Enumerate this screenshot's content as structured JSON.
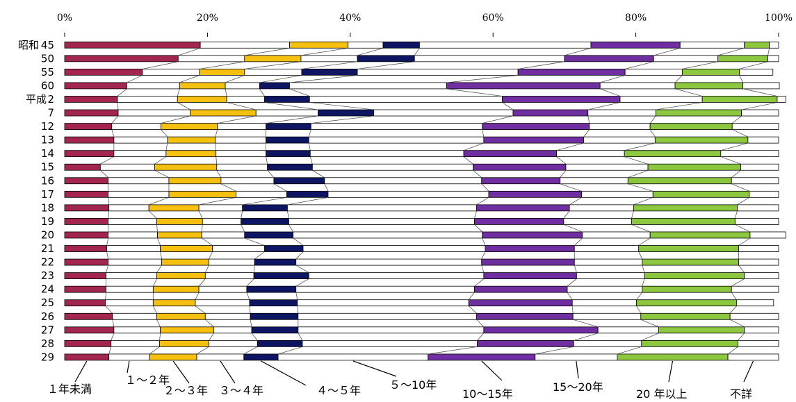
{
  "chart_data": {
    "type": "bar",
    "orientation": "horizontal",
    "stacked": "100%",
    "title": "",
    "xlabel": "",
    "ylabel": "",
    "xlim": [
      0,
      100
    ],
    "x_ticks": [
      "0%",
      "20%",
      "40%",
      "60%",
      "80%",
      "100%"
    ],
    "categories": [
      {
        "era": "昭和",
        "year": "45"
      },
      {
        "era": "",
        "year": "50"
      },
      {
        "era": "",
        "year": "55"
      },
      {
        "era": "",
        "year": "60"
      },
      {
        "era": "平成",
        "year": "2"
      },
      {
        "era": "",
        "year": "7"
      },
      {
        "era": "",
        "year": "12"
      },
      {
        "era": "",
        "year": "13"
      },
      {
        "era": "",
        "year": "14"
      },
      {
        "era": "",
        "year": "15"
      },
      {
        "era": "",
        "year": "16"
      },
      {
        "era": "",
        "year": "17"
      },
      {
        "era": "",
        "year": "18"
      },
      {
        "era": "",
        "year": "19"
      },
      {
        "era": "",
        "year": "20"
      },
      {
        "era": "",
        "year": "21"
      },
      {
        "era": "",
        "year": "22"
      },
      {
        "era": "",
        "year": "23"
      },
      {
        "era": "",
        "year": "24"
      },
      {
        "era": "",
        "year": "25"
      },
      {
        "era": "",
        "year": "26"
      },
      {
        "era": "",
        "year": "27"
      },
      {
        "era": "",
        "year": "28"
      },
      {
        "era": "",
        "year": "29"
      }
    ],
    "series": [
      {
        "name": "１年未満",
        "color": "#a3264e",
        "values": [
          19.0,
          15.9,
          10.9,
          8.7,
          7.4,
          7.5,
          6.6,
          6.9,
          6.9,
          5.0,
          6.1,
          6.1,
          6.2,
          6.1,
          6.1,
          5.9,
          6.1,
          5.8,
          5.8,
          5.7,
          6.7,
          6.9,
          6.5,
          6.2
        ]
      },
      {
        "name": "１～２年",
        "color": "#ffffff",
        "values": [
          12.5,
          9.3,
          8.0,
          7.4,
          8.4,
          10.1,
          6.9,
          7.5,
          7.3,
          7.6,
          8.5,
          8.5,
          5.6,
          6.8,
          6.9,
          7.5,
          7.5,
          7.1,
          6.6,
          6.7,
          6.2,
          6.5,
          6.8,
          5.7
        ]
      },
      {
        "name": "２～３年",
        "color": "#f5c010",
        "values": [
          8.2,
          7.9,
          6.3,
          6.4,
          6.9,
          9.2,
          7.9,
          6.7,
          7.0,
          8.7,
          7.3,
          9.4,
          7.0,
          6.4,
          6.2,
          7.3,
          6.6,
          6.8,
          6.4,
          5.9,
          6.8,
          7.5,
          6.9,
          6.6
        ]
      },
      {
        "name": "３～４年",
        "color": "#ffffff",
        "values": [
          4.9,
          7.9,
          8.0,
          4.8,
          5.3,
          8.7,
          6.8,
          7.1,
          7.0,
          7.1,
          7.4,
          7.1,
          6.1,
          5.4,
          6.0,
          7.3,
          6.4,
          6.8,
          6.7,
          7.6,
          6.3,
          5.3,
          6.8,
          6.6
        ]
      },
      {
        "name": "４～５年",
        "color": "#0e1663",
        "values": [
          5.1,
          8.0,
          7.8,
          4.2,
          6.3,
          7.8,
          6.3,
          6.0,
          6.2,
          6.3,
          7.1,
          5.8,
          6.3,
          6.7,
          6.8,
          5.4,
          5.8,
          7.7,
          6.9,
          6.7,
          6.7,
          6.5,
          6.3,
          4.8
        ]
      },
      {
        "name": "５～10年",
        "color": "#ffffff",
        "values": [
          24.0,
          21.0,
          22.5,
          22.0,
          27.0,
          19.5,
          24.0,
          24.5,
          21.5,
          22.5,
          22.0,
          22.5,
          26.5,
          26.0,
          26.5,
          25.5,
          26.0,
          24.5,
          25.0,
          24.0,
          25.0,
          26.0,
          24.5,
          21.0
        ]
      },
      {
        "name": "10～15年",
        "color": "#6f2fa0",
        "values": [
          12.5,
          12.5,
          15.0,
          21.5,
          16.5,
          10.5,
          15.0,
          14.0,
          13.0,
          13.0,
          11.0,
          13.0,
          13.0,
          12.5,
          14.0,
          12.5,
          13.0,
          13.0,
          13.0,
          14.5,
          13.5,
          16.0,
          13.5,
          15.0
        ]
      },
      {
        "name": "15～20年",
        "color": "#ffffff",
        "values": [
          9.0,
          9.0,
          8.0,
          10.5,
          11.5,
          9.5,
          8.5,
          10.0,
          9.5,
          11.5,
          9.5,
          10.0,
          9.0,
          9.5,
          9.5,
          9.0,
          9.5,
          9.5,
          10.5,
          9.0,
          9.5,
          8.5,
          9.5,
          11.5
        ]
      },
      {
        "name": "20 年以上",
        "color": "#8dc63f",
        "values": [
          3.5,
          7.0,
          8.0,
          9.5,
          10.5,
          12.0,
          11.5,
          13.0,
          13.5,
          13.0,
          14.5,
          13.5,
          14.5,
          14.5,
          14.0,
          14.0,
          13.5,
          14.0,
          12.5,
          14.0,
          12.5,
          12.0,
          13.5,
          15.5
        ]
      },
      {
        "name": "不詳",
        "color": "#ffffff",
        "values": [
          1.3,
          1.5,
          4.7,
          5.1,
          1.2,
          5.2,
          6.5,
          4.3,
          8.1,
          5.3,
          6.6,
          4.1,
          5.8,
          6.1,
          5.0,
          5.6,
          5.6,
          4.8,
          6.6,
          5.2,
          6.8,
          4.8,
          5.7,
          7.1
        ]
      }
    ],
    "legend": {
      "placement": "bottom",
      "labels": [
        "１年未満",
        "１～２年",
        "２～３年",
        "３～４年",
        "４～５年",
        "５～10年",
        "10～15年",
        "15～20年",
        "20 年以上",
        "不詳"
      ]
    },
    "grid": false
  }
}
